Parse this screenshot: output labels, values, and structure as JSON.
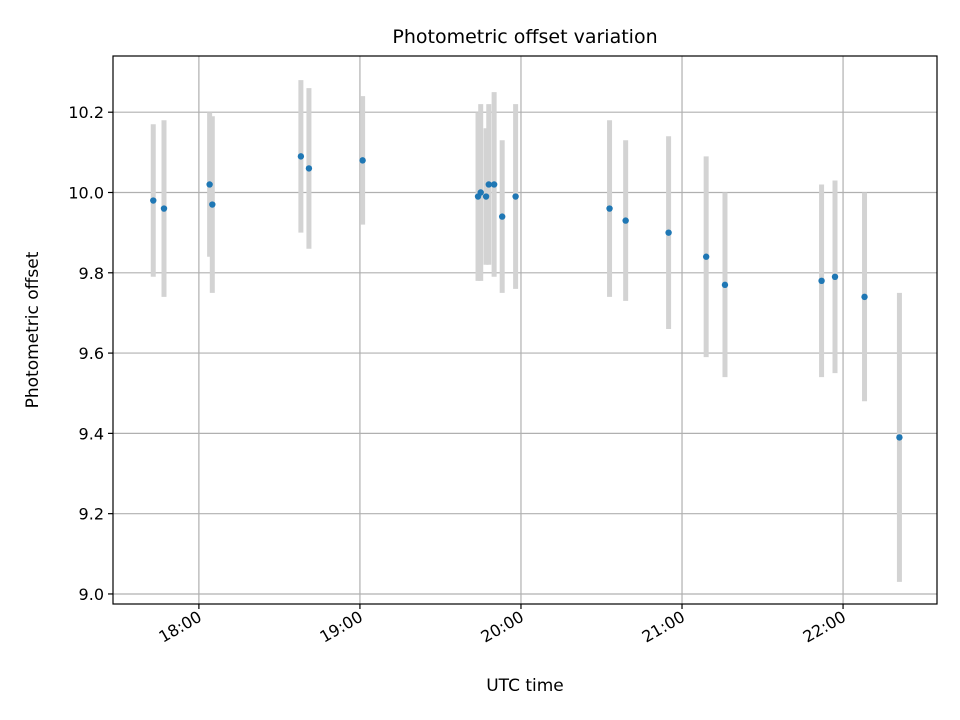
{
  "chart_data": {
    "type": "scatter",
    "title": "Photometric offset variation",
    "xlabel": "UTC time",
    "ylabel": "Photometric offset",
    "x_ticks": [
      "18:00",
      "19:00",
      "20:00",
      "21:00",
      "22:00"
    ],
    "y_ticks": [
      "9.0",
      "9.2",
      "9.4",
      "9.6",
      "9.8",
      "10.0",
      "10.2"
    ],
    "xlim": [
      "17:28",
      "22:35"
    ],
    "ylim": [
      8.975,
      10.34
    ],
    "grid": true,
    "point_color": "#1f77b4",
    "errorbar_color": "#d3d3d3",
    "series": [
      {
        "points": [
          {
            "t": "17:43",
            "y": 9.98,
            "err": 0.19
          },
          {
            "t": "17:47",
            "y": 9.96,
            "err": 0.22
          },
          {
            "t": "18:04",
            "y": 10.02,
            "err": 0.18
          },
          {
            "t": "18:05",
            "y": 9.97,
            "err": 0.22
          },
          {
            "t": "18:38",
            "y": 10.09,
            "err": 0.19
          },
          {
            "t": "18:41",
            "y": 10.06,
            "err": 0.2
          },
          {
            "t": "19:01",
            "y": 10.08,
            "err": 0.16
          },
          {
            "t": "19:44",
            "y": 9.99,
            "err": 0.21
          },
          {
            "t": "19:45",
            "y": 10.0,
            "err": 0.22
          },
          {
            "t": "19:47",
            "y": 9.99,
            "err": 0.17
          },
          {
            "t": "19:48",
            "y": 10.02,
            "err": 0.2
          },
          {
            "t": "19:50",
            "y": 10.02,
            "err": 0.23
          },
          {
            "t": "19:53",
            "y": 9.94,
            "err": 0.19
          },
          {
            "t": "19:58",
            "y": 9.99,
            "err": 0.23
          },
          {
            "t": "20:33",
            "y": 9.96,
            "err": 0.22
          },
          {
            "t": "20:39",
            "y": 9.93,
            "err": 0.2
          },
          {
            "t": "20:55",
            "y": 9.9,
            "err": 0.24
          },
          {
            "t": "21:09",
            "y": 9.84,
            "err": 0.25
          },
          {
            "t": "21:16",
            "y": 9.77,
            "err": 0.23
          },
          {
            "t": "21:52",
            "y": 9.78,
            "err": 0.24
          },
          {
            "t": "21:57",
            "y": 9.79,
            "err": 0.24
          },
          {
            "t": "22:08",
            "y": 9.74,
            "err": 0.26
          },
          {
            "t": "22:21",
            "y": 9.39,
            "err": 0.36
          }
        ]
      }
    ]
  }
}
